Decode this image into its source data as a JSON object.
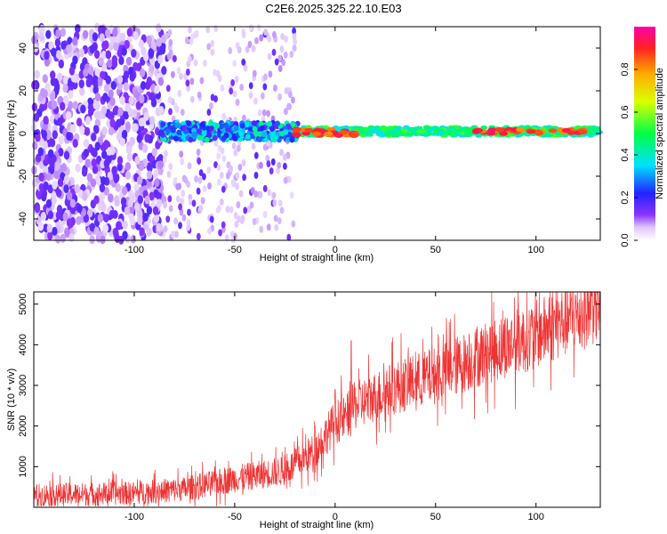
{
  "title": "C2E6.2025.325.22.10.E03",
  "chart_data": [
    {
      "type": "heatmap",
      "xlabel": "Height of straight line (km)",
      "ylabel": "Frequency (Hz)",
      "xlim": [
        -150,
        132
      ],
      "ylim": [
        -50,
        50
      ],
      "xticks": [
        -100,
        -50,
        0,
        50,
        100
      ],
      "yticks": [
        -40,
        -20,
        0,
        20,
        40
      ],
      "xtick_labels": [
        "-100",
        "-50",
        "0",
        "50",
        "100"
      ],
      "ytick_labels": [
        "-40",
        "-20",
        "0",
        "20",
        "40"
      ],
      "regions": [
        {
          "name": "noise-dense",
          "x": [
            -150,
            -85
          ],
          "freq": [
            -50,
            50
          ],
          "amplitude": 0.12
        },
        {
          "name": "noise-sparse",
          "x": [
            -85,
            -20
          ],
          "freq": [
            -50,
            50
          ],
          "amplitude": 0.07
        },
        {
          "name": "signal-band-broad",
          "x": [
            -87,
            -18
          ],
          "freq": [
            -3,
            5
          ],
          "amplitude": 0.35
        },
        {
          "name": "signal-band-narrow",
          "x": [
            -18,
            132
          ],
          "freq": [
            -1,
            3
          ],
          "amplitude": 0.45
        },
        {
          "name": "signal-peak-bright",
          "x": [
            -20,
            10
          ],
          "freq": [
            -1,
            2
          ],
          "amplitude": 0.92
        },
        {
          "name": "signal-peak-late",
          "x": [
            70,
            125
          ],
          "freq": [
            0,
            2
          ],
          "amplitude": 0.9
        }
      ],
      "colorbar": {
        "label": "Normalized spectral amplitude",
        "ticks": [
          0.0,
          0.2,
          0.4,
          0.6,
          0.8
        ],
        "tick_labels": [
          "0.0",
          "0.2",
          "0.4",
          "0.6",
          "0.8"
        ],
        "range": [
          0,
          1
        ]
      }
    },
    {
      "type": "line",
      "xlabel": "Height of straight line (km)",
      "ylabel": "SNR (10 * v/v)",
      "xlim": [
        -150,
        132
      ],
      "ylim": [
        0,
        5300
      ],
      "xticks": [
        -100,
        -50,
        0,
        50,
        100
      ],
      "yticks": [
        1000,
        2000,
        3000,
        4000,
        5000
      ],
      "xtick_labels": [
        "-100",
        "-50",
        "0",
        "50",
        "100"
      ],
      "ytick_labels": [
        "1000",
        "2000",
        "3000",
        "4000",
        "5000"
      ],
      "color": "#ee3333",
      "trend": {
        "x": [
          -150,
          -100,
          -75,
          -50,
          -25,
          -10,
          0,
          5,
          10,
          30,
          50,
          75,
          100,
          132
        ],
        "y": [
          300,
          350,
          450,
          700,
          900,
          1400,
          2100,
          2200,
          2500,
          2950,
          3250,
          3800,
          4250,
          5000
        ]
      },
      "spikes": [
        {
          "x": 8,
          "y": 4100
        },
        {
          "x": 0,
          "y": 2900
        },
        {
          "x": -10,
          "y": 2000
        },
        {
          "x": 128,
          "y": 5300
        }
      ]
    }
  ]
}
